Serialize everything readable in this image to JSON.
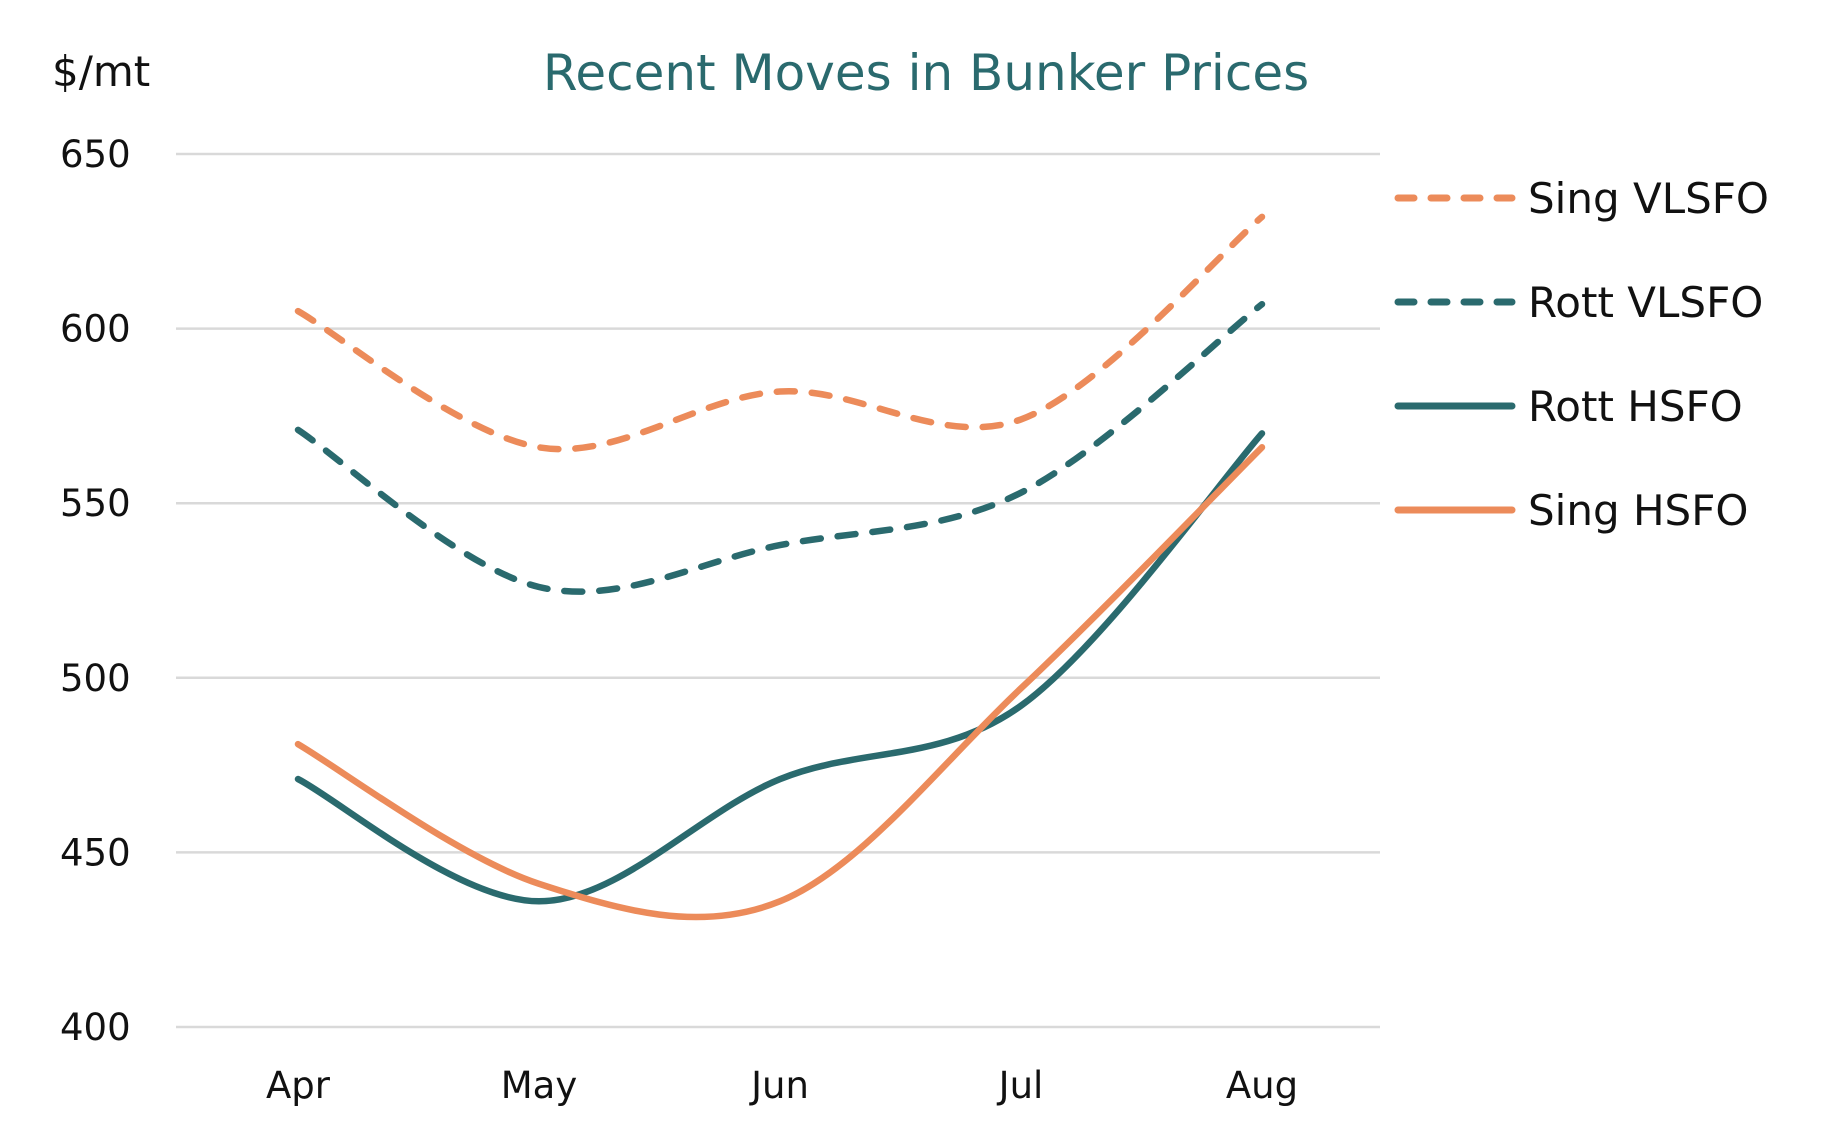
{
  "chart_data": {
    "type": "line",
    "title": "Recent Moves in Bunker Prices",
    "ylabel": "$/mt",
    "xlabel": "",
    "categories": [
      "Apr",
      "May",
      "Jun",
      "Jul",
      "Aug"
    ],
    "ylim": [
      400,
      650
    ],
    "yticks": [
      650,
      600,
      550,
      500,
      450,
      400
    ],
    "grid": true,
    "legend_position": "right",
    "series": [
      {
        "name": "Sing VLSFO",
        "values": [
          605,
          566,
          582,
          574,
          632
        ],
        "color": "#ec8b5a",
        "style": "dashed"
      },
      {
        "name": "Rott VLSFO",
        "values": [
          571,
          526,
          538,
          553,
          607
        ],
        "color": "#2a6a6e",
        "style": "dashed"
      },
      {
        "name": "Rott HSFO",
        "values": [
          471,
          436,
          471,
          492,
          570
        ],
        "color": "#2a6a6e",
        "style": "solid"
      },
      {
        "name": "Sing HSFO",
        "values": [
          481,
          441,
          436,
          497,
          566
        ],
        "color": "#ec8b5a",
        "style": "solid"
      }
    ]
  }
}
